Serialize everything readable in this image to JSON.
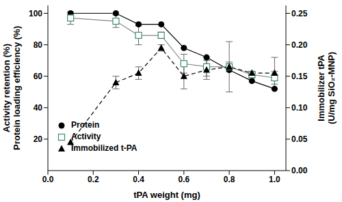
{
  "chart_data": {
    "type": "line",
    "x_label": "tPA weight (mg)",
    "y_label": [
      "Activity retention (%)",
      "Protein loading efficiency (%)"
    ],
    "y2_label": [
      "Immobilizer tPA",
      "(U/mg SiO₂-MNP)"
    ],
    "x": [
      0.1,
      0.3,
      0.4,
      0.5,
      0.6,
      0.7,
      0.8,
      0.9,
      1.0
    ],
    "xlim": [
      0,
      1.05
    ],
    "xticks": [
      {
        "value": 0,
        "label": "0.0"
      },
      {
        "value": 0.2,
        "label": "0.2"
      },
      {
        "value": 0.4,
        "label": "0.4"
      },
      {
        "value": 0.6,
        "label": "0.6"
      },
      {
        "value": 0.8,
        "label": "0.8"
      },
      {
        "value": 1,
        "label": "1.0"
      }
    ],
    "ylim": [
      0,
      105
    ],
    "yticks": [
      20,
      40,
      60,
      80,
      100
    ],
    "y2lim": [
      0,
      0.2625
    ],
    "y2ticks": [
      {
        "value": 0,
        "label": "0.00"
      },
      {
        "value": 0.05,
        "label": "0.05"
      },
      {
        "value": 0.1,
        "label": "0.10"
      },
      {
        "value": 0.15,
        "label": "0.15"
      },
      {
        "value": 0.2,
        "label": "0.20"
      },
      {
        "value": 0.25,
        "label": "0.25"
      }
    ],
    "legend": "left",
    "series": [
      {
        "name": "Protein",
        "color": "#000000",
        "marker": "circle",
        "line_style": "solid",
        "values": [
          100,
          100,
          93,
          93,
          78,
          72,
          64,
          57,
          52
        ]
      },
      {
        "name": "Activity",
        "color": "#3d8b6e",
        "marker": "open_square",
        "line_style": "solid",
        "values": [
          97,
          95,
          86,
          86,
          68,
          66,
          66,
          61,
          59
        ],
        "errors": [
          4,
          4,
          6,
          2,
          6,
          6,
          3,
          2,
          4
        ]
      },
      {
        "name": "Immobilized t-PA",
        "color": "#000000",
        "marker": "triangle",
        "line_style": "dashed",
        "axis": "y2",
        "values": [
          0.045,
          0.14,
          0.155,
          0.195,
          0.15,
          0.16,
          0.165,
          0.155,
          0.155
        ],
        "errors": [
          0,
          0.01,
          0.01,
          0.005,
          0.02,
          0.015,
          0.04,
          0.003,
          0.025
        ]
      }
    ]
  }
}
